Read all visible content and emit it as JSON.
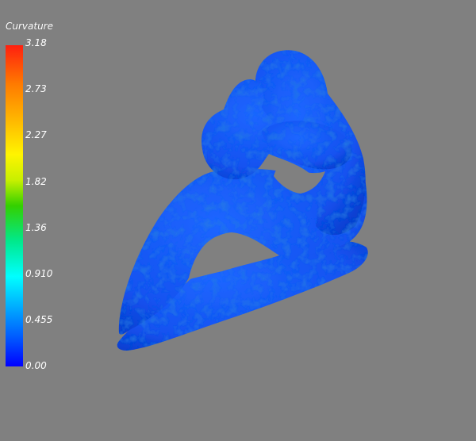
{
  "legend": {
    "title": "Curvature",
    "ticks": [
      "3.18",
      "2.73",
      "2.27",
      "1.82",
      "1.36",
      "0.910",
      "0.455",
      "0.00"
    ]
  },
  "colors": {
    "background": "#808080",
    "model_base": "#1452f0",
    "scale_max": "#ff1f0f",
    "scale_min": "#0000ff"
  }
}
